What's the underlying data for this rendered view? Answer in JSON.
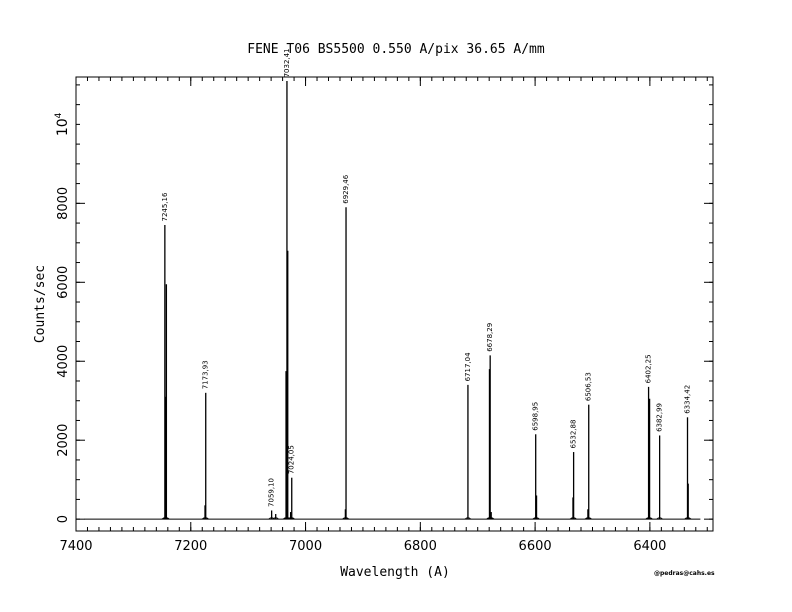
{
  "chart_data": {
    "type": "line",
    "title": "FENE  T06  BS5500  0.550 A/pix  36.65 A/mm",
    "xlabel": "Wavelength (A)",
    "ylabel": "Counts/sec",
    "y_scale_label": "10^4",
    "credit": "@pedras@cahs.es",
    "xlim": [
      7400,
      6290
    ],
    "ylim": [
      -300,
      11200
    ],
    "x_ticks": [
      7400,
      7200,
      7000,
      6800,
      6600,
      6400
    ],
    "y_ticks": [
      0,
      2000,
      4000,
      6000,
      8000
    ],
    "x_minor_step": 20,
    "y_minor_step": 500,
    "data_range": [
      7385,
      6312
    ],
    "grid": false,
    "peaks": [
      {
        "x": 7245.16,
        "y": 7450,
        "label": "7245,16"
      },
      {
        "x": 7243.8,
        "y": 3100,
        "label": ""
      },
      {
        "x": 7242.5,
        "y": 5950,
        "label": ""
      },
      {
        "x": 7173.93,
        "y": 3200,
        "label": "7173,93"
      },
      {
        "x": 7175.2,
        "y": 350,
        "label": ""
      },
      {
        "x": 7059.1,
        "y": 220,
        "label": "7059,10"
      },
      {
        "x": 7052.0,
        "y": 130,
        "label": ""
      },
      {
        "x": 7032.41,
        "y": 11100,
        "label": "7032,41"
      },
      {
        "x": 7034.0,
        "y": 3750,
        "label": ""
      },
      {
        "x": 7031.0,
        "y": 6800,
        "label": ""
      },
      {
        "x": 7024.05,
        "y": 1050,
        "label": "7024,05"
      },
      {
        "x": 7026.0,
        "y": 180,
        "label": ""
      },
      {
        "x": 6929.46,
        "y": 7900,
        "label": "6929,46"
      },
      {
        "x": 6930.6,
        "y": 250,
        "label": ""
      },
      {
        "x": 6717.04,
        "y": 3400,
        "label": "6717,04"
      },
      {
        "x": 6678.29,
        "y": 4150,
        "label": "6678,29"
      },
      {
        "x": 6679.5,
        "y": 3800,
        "label": ""
      },
      {
        "x": 6676.5,
        "y": 180,
        "label": ""
      },
      {
        "x": 6598.95,
        "y": 2150,
        "label": "6598,95"
      },
      {
        "x": 6597.5,
        "y": 600,
        "label": ""
      },
      {
        "x": 6532.88,
        "y": 1700,
        "label": "6532,88"
      },
      {
        "x": 6534.0,
        "y": 550,
        "label": ""
      },
      {
        "x": 6506.53,
        "y": 2900,
        "label": "6506,53"
      },
      {
        "x": 6508.0,
        "y": 250,
        "label": ""
      },
      {
        "x": 6402.25,
        "y": 3350,
        "label": "6402,25"
      },
      {
        "x": 6400.5,
        "y": 3050,
        "label": ""
      },
      {
        "x": 6382.99,
        "y": 2120,
        "label": "6382,99"
      },
      {
        "x": 6334.42,
        "y": 2580,
        "label": "6334,42"
      },
      {
        "x": 6333.2,
        "y": 900,
        "label": ""
      }
    ]
  }
}
